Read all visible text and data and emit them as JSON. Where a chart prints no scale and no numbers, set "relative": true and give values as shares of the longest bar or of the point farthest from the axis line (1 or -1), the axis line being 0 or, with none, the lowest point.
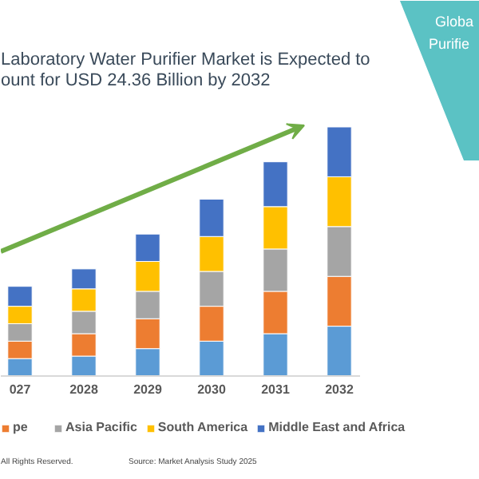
{
  "chart_data": {
    "type": "bar",
    "stacked": true,
    "relative": true,
    "legend": "bottom",
    "title": "Laboratory Water Purifier Market is Expected to\nount for USD 24.36 Billion by 2032",
    "categories": [
      "027",
      "2028",
      "2029",
      "2030",
      "2031",
      "2032"
    ],
    "series": [
      {
        "color": "#5b9bd5",
        "values": [
          0.07,
          0.08,
          0.11,
          0.14,
          0.17,
          0.2
        ]
      },
      {
        "name": "pe",
        "color": "#ed7d31",
        "values": [
          0.07,
          0.09,
          0.12,
          0.14,
          0.17,
          0.2
        ]
      },
      {
        "name": "Asia Pacific",
        "color": "#a5a5a5",
        "values": [
          0.07,
          0.09,
          0.11,
          0.14,
          0.17,
          0.2
        ]
      },
      {
        "name": "South America",
        "color": "#ffc000",
        "values": [
          0.07,
          0.09,
          0.12,
          0.14,
          0.17,
          0.2
        ]
      },
      {
        "name": "Middle East and Africa",
        "color": "#4472c4",
        "values": [
          0.08,
          0.08,
          0.11,
          0.15,
          0.18,
          0.2
        ]
      }
    ],
    "annotations": [
      "Globa",
      "Purifie",
      "All Rights Reserved.",
      "Source: Market Analysis Study 2025"
    ]
  }
}
